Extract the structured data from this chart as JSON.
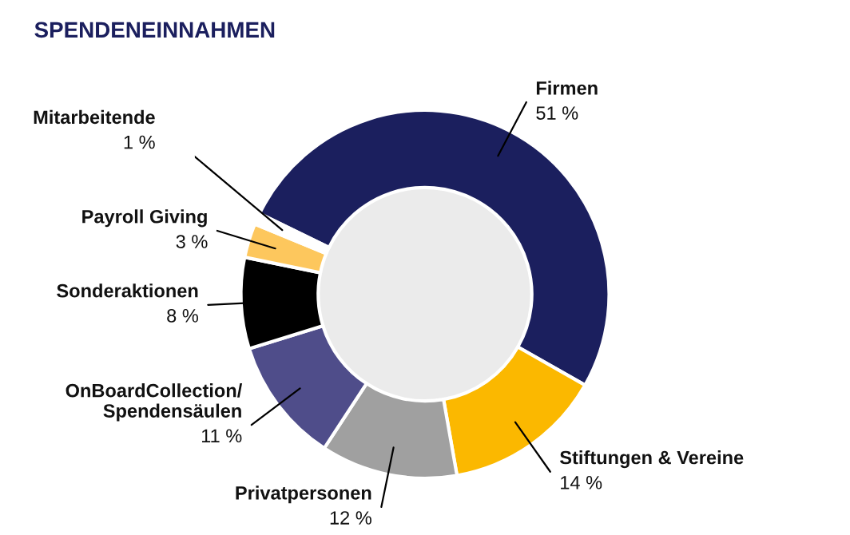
{
  "chart_data": {
    "type": "donut",
    "title": "SPENDENEINNAHMEN",
    "categories": [
      "Firmen",
      "Stiftungen & Vereine",
      "Privatpersonen",
      "OnBoardCollection/\nSpendensäulen",
      "Sonderaktionen",
      "Payroll Giving",
      "Mitarbeitende"
    ],
    "values": [
      51,
      14,
      12,
      11,
      8,
      3,
      1
    ],
    "value_labels": [
      "51 %",
      "14 %",
      "12 %",
      "11 %",
      "8 %",
      "3 %",
      "1 %"
    ],
    "colors": [
      "#1b1f5e",
      "#fbb800",
      "#a0a0a0",
      "#4f4d8a",
      "#000000",
      "#fdc75d",
      "#ffffff"
    ]
  }
}
